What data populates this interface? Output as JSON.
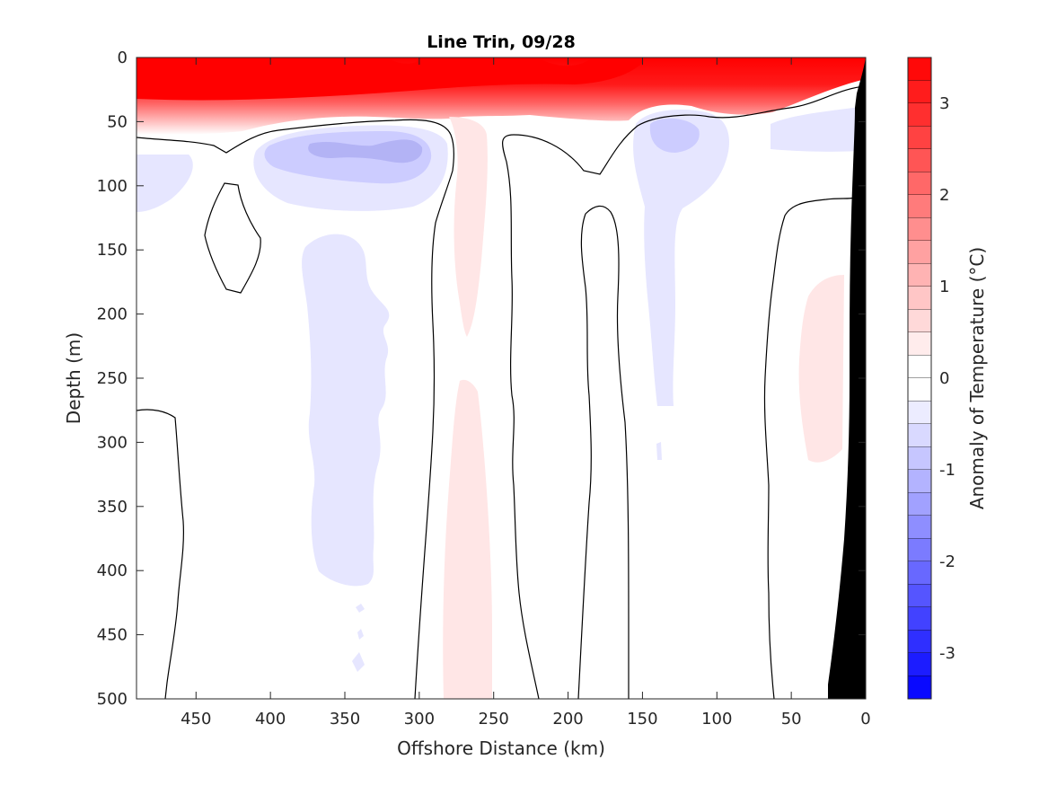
{
  "chart_data": {
    "type": "heatmap",
    "subtype": "filled-contour",
    "title": "Line Trin, 09/28",
    "xlabel": "Offshore Distance (km)",
    "ylabel": "Depth (m)",
    "colorbar_label": "Anomaly of Temperature (°C)",
    "xlim": [
      490,
      0
    ],
    "x_reversed": true,
    "ylim": [
      0,
      500
    ],
    "y_reversed": true,
    "x_ticks": [
      450,
      400,
      350,
      300,
      250,
      200,
      150,
      100,
      50,
      0
    ],
    "y_ticks": [
      0,
      50,
      100,
      150,
      200,
      250,
      300,
      350,
      400,
      450,
      500
    ],
    "colorbar": {
      "range": [
        -3.5,
        3.5
      ],
      "ticks": [
        3,
        2,
        1,
        0,
        -1,
        -2,
        -3
      ],
      "tick_labels": [
        "3",
        "2",
        "1",
        "0",
        "-1",
        "-2",
        "-3"
      ],
      "step": 0.25,
      "negative_color": "#0000ff",
      "positive_color": "#ff0000",
      "zero_color": "#ffffff"
    },
    "regions": [
      {
        "name": "surface-warm-layer",
        "anomaly": 3.5,
        "depth_range": [
          0,
          60
        ],
        "distance_range": [
          490,
          0
        ]
      },
      {
        "name": "cold-core-offshore",
        "anomaly": -0.75,
        "distance_km": 350,
        "depth_m": 75
      },
      {
        "name": "cold-core-nearshore",
        "anomaly": -0.75,
        "distance_km": 130,
        "depth_m": 60
      },
      {
        "name": "warm-column",
        "anomaly": 0.25,
        "distance_km": 265,
        "depth_range": [
          60,
          500
        ]
      },
      {
        "name": "cold-column",
        "anomaly": -0.25,
        "distance_km": 350,
        "depth_range": [
          150,
          410
        ]
      },
      {
        "name": "warm-patch-shelf",
        "anomaly": 0.25,
        "distance_km": 40,
        "depth_range": [
          170,
          310
        ]
      },
      {
        "name": "bathymetry",
        "color": "#000000",
        "distance_range": [
          25,
          0
        ]
      }
    ]
  }
}
